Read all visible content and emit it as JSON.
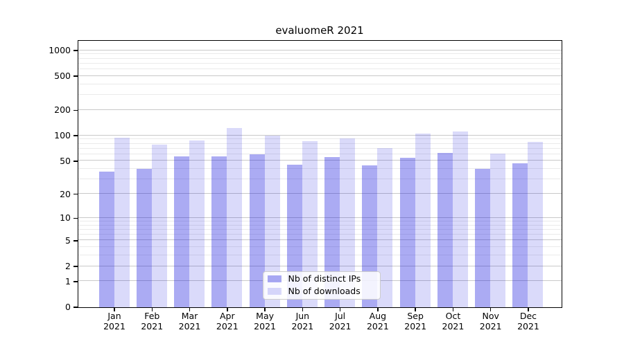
{
  "chart_data": {
    "type": "bar",
    "title": "evaluomeR 2021",
    "year_label": "2021",
    "categories": [
      "Jan",
      "Feb",
      "Mar",
      "Apr",
      "May",
      "Jun",
      "Jul",
      "Aug",
      "Sep",
      "Oct",
      "Nov",
      "Dec"
    ],
    "series": [
      {
        "name": "Nb of distinct IPs",
        "color": "rgba(0,0,220,0.33)",
        "values": [
          37,
          40,
          56,
          57,
          60,
          45,
          55,
          44,
          54,
          62,
          40,
          47
        ]
      },
      {
        "name": "Nb of downloads",
        "color": "rgba(0,0,220,0.145)",
        "values": [
          94,
          78,
          88,
          123,
          100,
          86,
          93,
          71,
          106,
          111,
          61,
          84
        ]
      }
    ],
    "y_axis": {
      "scale": "log1p",
      "ticks": [
        0,
        1,
        2,
        5,
        10,
        20,
        50,
        100,
        200,
        500,
        1000
      ],
      "minor_gridlines": [
        3,
        4,
        6,
        7,
        8,
        9,
        30,
        40,
        60,
        70,
        80,
        90,
        300,
        400,
        600,
        700,
        800,
        900
      ],
      "ylim": [
        0,
        1300
      ]
    },
    "grid": {
      "major_color": "#c9c9c9",
      "minor_color": "#eaeaea"
    },
    "legend": {
      "position": "lower-center"
    },
    "axis_color": "#000000"
  }
}
